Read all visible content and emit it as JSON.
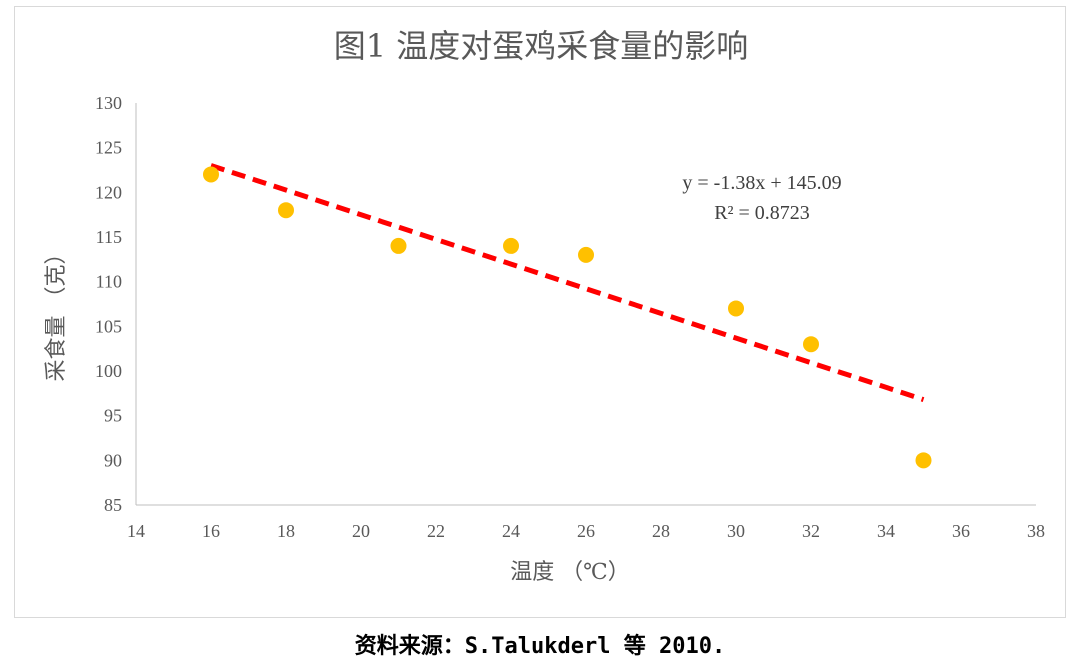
{
  "chart_data": {
    "type": "scatter",
    "title": "图1 温度对蛋鸡采食量的影响",
    "xlabel": "温度 （℃）",
    "ylabel": "采食量 （克）",
    "xlim": [
      14,
      38
    ],
    "ylim": [
      85,
      130
    ],
    "x_ticks": [
      14,
      16,
      18,
      20,
      22,
      24,
      26,
      28,
      30,
      32,
      34,
      36,
      38
    ],
    "y_ticks": [
      85,
      90,
      95,
      100,
      105,
      110,
      115,
      120,
      125,
      130
    ],
    "points": [
      {
        "x": 16,
        "y": 122
      },
      {
        "x": 18,
        "y": 118
      },
      {
        "x": 21,
        "y": 114
      },
      {
        "x": 24,
        "y": 114
      },
      {
        "x": 26,
        "y": 113
      },
      {
        "x": 30,
        "y": 107
      },
      {
        "x": 32,
        "y": 103
      },
      {
        "x": 35,
        "y": 90
      }
    ],
    "trendline": {
      "type": "linear",
      "slope": -1.38,
      "intercept": 145.09,
      "x_range": [
        16,
        35
      ],
      "color": "#ff0000",
      "style": "dashed"
    },
    "equation_label": "y = -1.38x + 145.09",
    "r2_label": "R² = 0.8723",
    "point_color": "#ffc000",
    "grid": false
  },
  "source_text": "资料来源：S.Talukderl 等 2010."
}
